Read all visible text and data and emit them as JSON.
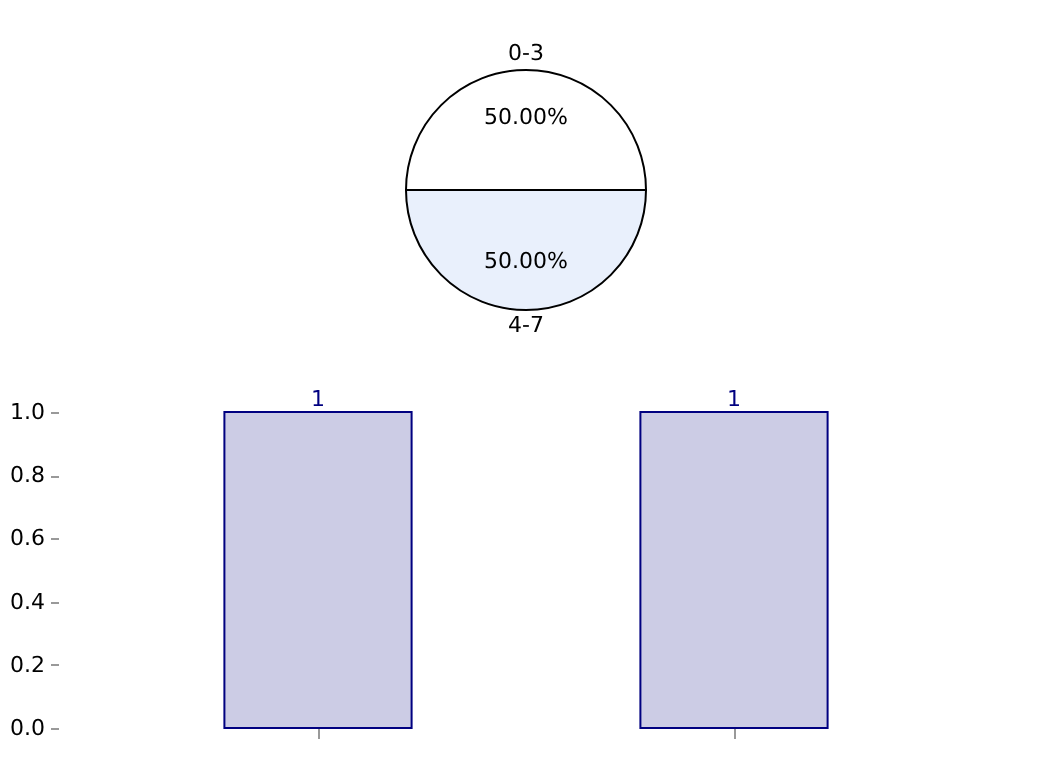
{
  "chart_data": [
    {
      "type": "pie",
      "categories": [
        "0-3",
        "4-7"
      ],
      "values": [
        50,
        50
      ],
      "colors": [
        "#ffffff",
        "#e9f0fc"
      ],
      "value_labels": [
        "50.00%",
        "50.00%"
      ]
    },
    {
      "type": "bar",
      "categories": [
        null,
        null
      ],
      "values": [
        1,
        1
      ],
      "color": "#cccce5",
      "value_labels": [
        "1",
        "1"
      ],
      "ylim": [
        0,
        1
      ],
      "yticks": [
        {
          "value": 0,
          "label": "0.0"
        },
        {
          "value": 0.2,
          "label": "0.2"
        },
        {
          "value": 0.4,
          "label": "0.4"
        },
        {
          "value": 0.6,
          "label": "0.6"
        },
        {
          "value": 0.8,
          "label": "0.8"
        },
        {
          "value": 1.0,
          "label": "1.0"
        }
      ],
      "tick_labels": "y"
    }
  ]
}
